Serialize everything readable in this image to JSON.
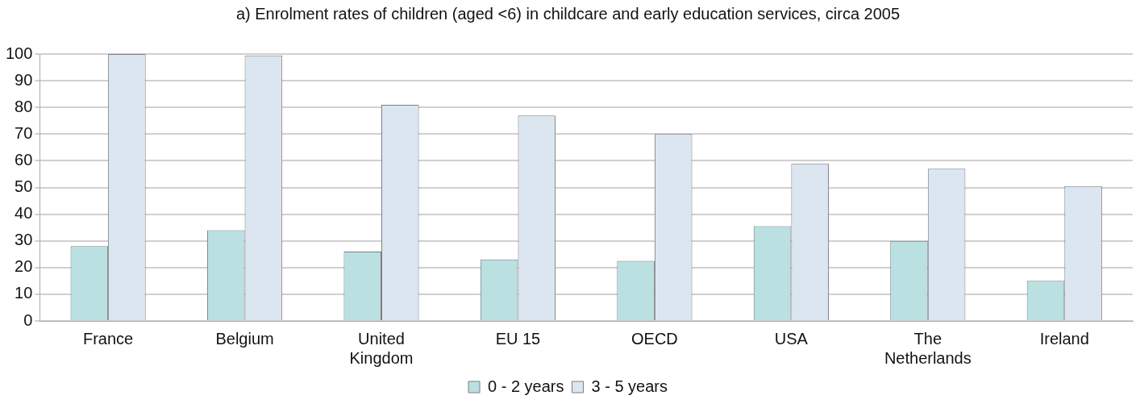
{
  "chart_data": {
    "type": "bar",
    "title": "a) Enrolment rates of children (aged <6) in childcare and early education services, circa 2005",
    "categories": [
      "France",
      "Belgium",
      "United Kingdom",
      "EU 15",
      "OECD",
      "USA",
      "The Netherlands",
      "Ireland"
    ],
    "series": [
      {
        "name": "0 - 2 years",
        "color": "#bae0e2",
        "values": [
          28,
          34,
          26,
          23,
          22.5,
          35.5,
          30,
          15
        ]
      },
      {
        "name": "3 - 5 years",
        "color": "#dce6f1",
        "values": [
          100,
          99.5,
          81,
          77,
          70,
          59,
          57,
          50.5
        ]
      }
    ],
    "ylim": [
      0,
      100
    ],
    "yticks": [
      0,
      10,
      20,
      30,
      40,
      50,
      60,
      70,
      80,
      90,
      100
    ],
    "grid": "y",
    "legend": "bottom"
  }
}
